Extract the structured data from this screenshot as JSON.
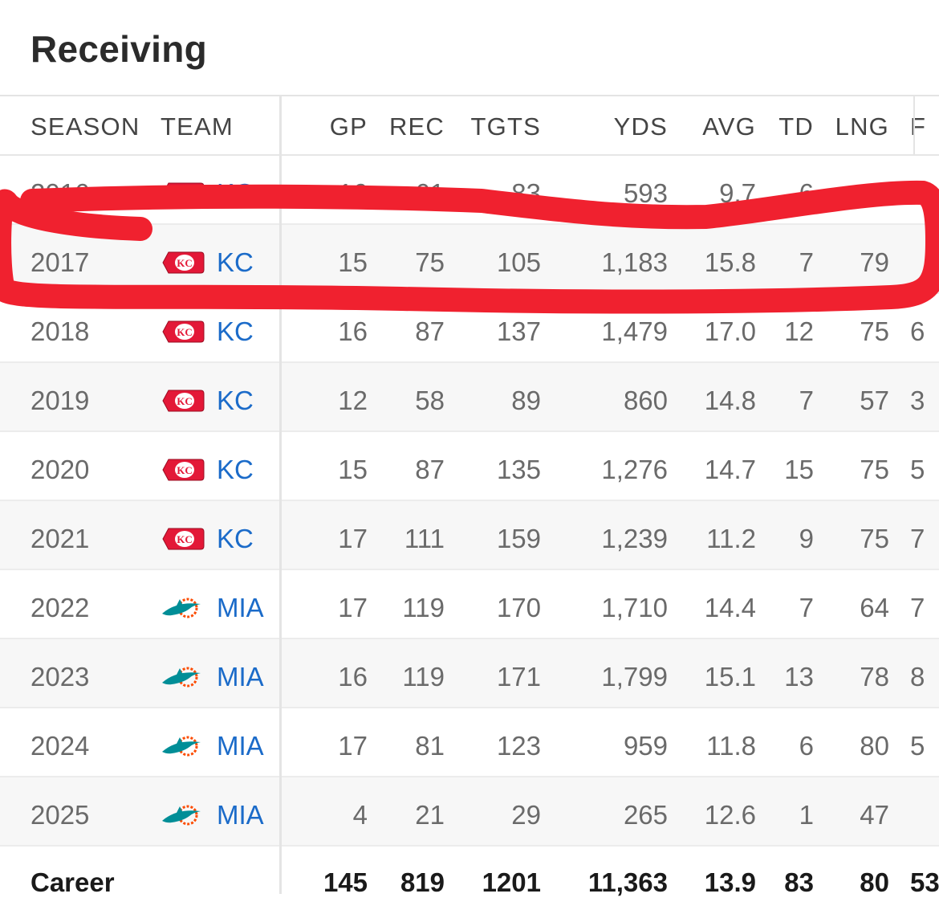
{
  "page": {
    "title": "Receiving"
  },
  "columns": [
    "SEASON",
    "TEAM",
    "GP",
    "REC",
    "TGTS",
    "YDS",
    "AVG",
    "TD",
    "LNG"
  ],
  "rows": [
    {
      "season": "2016",
      "team": "KC",
      "team_logo": "chiefs-logo-icon",
      "gp": "16",
      "rec": "61",
      "tgts": "83",
      "yds": "593",
      "avg": "9.7",
      "td": "6",
      "lng": "49",
      "extra": "1"
    },
    {
      "season": "2017",
      "team": "KC",
      "team_logo": "chiefs-logo-icon",
      "gp": "15",
      "rec": "75",
      "tgts": "105",
      "yds": "1,183",
      "avg": "15.8",
      "td": "7",
      "lng": "79",
      "extra": ""
    },
    {
      "season": "2018",
      "team": "KC",
      "team_logo": "chiefs-logo-icon",
      "gp": "16",
      "rec": "87",
      "tgts": "137",
      "yds": "1,479",
      "avg": "17.0",
      "td": "12",
      "lng": "75",
      "extra": "6"
    },
    {
      "season": "2019",
      "team": "KC",
      "team_logo": "chiefs-logo-icon",
      "gp": "12",
      "rec": "58",
      "tgts": "89",
      "yds": "860",
      "avg": "14.8",
      "td": "7",
      "lng": "57",
      "extra": "3"
    },
    {
      "season": "2020",
      "team": "KC",
      "team_logo": "chiefs-logo-icon",
      "gp": "15",
      "rec": "87",
      "tgts": "135",
      "yds": "1,276",
      "avg": "14.7",
      "td": "15",
      "lng": "75",
      "extra": "5"
    },
    {
      "season": "2021",
      "team": "KC",
      "team_logo": "chiefs-logo-icon",
      "gp": "17",
      "rec": "111",
      "tgts": "159",
      "yds": "1,239",
      "avg": "11.2",
      "td": "9",
      "lng": "75",
      "extra": "7"
    },
    {
      "season": "2022",
      "team": "MIA",
      "team_logo": "dolphins-logo-icon",
      "gp": "17",
      "rec": "119",
      "tgts": "170",
      "yds": "1,710",
      "avg": "14.4",
      "td": "7",
      "lng": "64",
      "extra": "7"
    },
    {
      "season": "2023",
      "team": "MIA",
      "team_logo": "dolphins-logo-icon",
      "gp": "16",
      "rec": "119",
      "tgts": "171",
      "yds": "1,799",
      "avg": "15.1",
      "td": "13",
      "lng": "78",
      "extra": "8"
    },
    {
      "season": "2024",
      "team": "MIA",
      "team_logo": "dolphins-logo-icon",
      "gp": "17",
      "rec": "81",
      "tgts": "123",
      "yds": "959",
      "avg": "11.8",
      "td": "6",
      "lng": "80",
      "extra": "5"
    },
    {
      "season": "2025",
      "team": "MIA",
      "team_logo": "dolphins-logo-icon",
      "gp": "4",
      "rec": "21",
      "tgts": "29",
      "yds": "265",
      "avg": "12.6",
      "td": "1",
      "lng": "47",
      "extra": ""
    }
  ],
  "career": {
    "label": "Career",
    "gp": "145",
    "rec": "819",
    "tgts": "1201",
    "yds": "11,363",
    "avg": "13.9",
    "td": "83",
    "lng": "80",
    "extra": "53"
  },
  "annotation": {
    "shape": "hand-drawn-highlight-loop",
    "color": "#f0212f",
    "target_season": "2017"
  },
  "colors": {
    "team_link": "#1b6bc9",
    "chiefs_red": "#e31837",
    "dolphins_aqua": "#008e97",
    "dolphins_orange": "#fc4c02"
  }
}
